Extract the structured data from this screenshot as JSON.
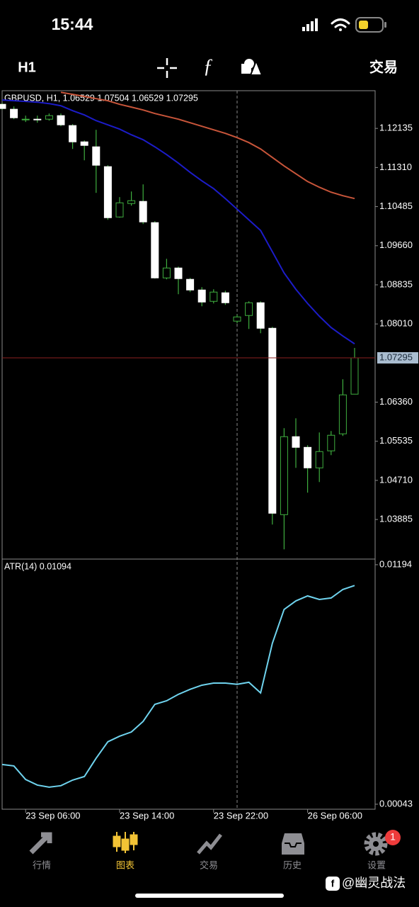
{
  "status_bar": {
    "time": "15:44"
  },
  "toolbar": {
    "timeframe": "H1",
    "trade": "交易"
  },
  "chart_data": [
    {
      "type": "candlestick",
      "title": "GBPUSD, H1, 1.06529 1.07504 1.06529 1.07295",
      "categories": [
        null,
        null,
        "23 Sep 06:00",
        null,
        null,
        null,
        null,
        null,
        null,
        null,
        "23 Sep 14:00",
        null,
        null,
        null,
        null,
        null,
        null,
        null,
        "23 Sep 22:00",
        null,
        null,
        null,
        null,
        null,
        null,
        null,
        "26 Sep 06:00",
        null,
        null,
        null,
        null
      ],
      "open": [
        1.12643,
        1.12539,
        1.12314,
        1.12329,
        1.12329,
        1.12404,
        1.12195,
        1.11851,
        1.11746,
        1.11328,
        1.10266,
        1.1055,
        1.10595,
        1.10147,
        1.08981,
        1.0919,
        1.08951,
        1.08726,
        1.08487,
        1.08667,
        1.08069,
        1.08188,
        1.08457,
        1.07919,
        1.03987,
        1.05632,
        1.05407,
        1.04974,
        1.05333,
        1.05692,
        1.06529
      ],
      "high": [
        1.12673,
        1.12598,
        1.12404,
        1.12404,
        1.12449,
        1.12449,
        1.12225,
        1.11881,
        1.12105,
        1.11358,
        1.10685,
        1.10804,
        1.10954,
        1.10177,
        1.09384,
        1.0922,
        1.08981,
        1.08786,
        1.08741,
        1.08711,
        1.08203,
        1.08487,
        1.08487,
        1.07949,
        1.05811,
        1.0602,
        1.05452,
        1.05721,
        1.05751,
        1.06843,
        1.07504
      ],
      "low": [
        1.12524,
        1.12329,
        1.1227,
        1.12255,
        1.12299,
        1.1218,
        1.11701,
        1.11462,
        1.10775,
        1.10206,
        1.10251,
        1.10505,
        1.10117,
        1.08966,
        1.08951,
        1.08637,
        1.08682,
        1.08383,
        1.08442,
        1.08412,
        1.08024,
        1.07904,
        1.07814,
        1.03778,
        1.03255,
        1.04974,
        1.04451,
        1.04675,
        1.05243,
        1.05647,
        1.06529
      ],
      "close": [
        1.12554,
        1.12359,
        1.12329,
        1.12314,
        1.12404,
        1.1221,
        1.11851,
        1.11776,
        1.11358,
        1.10251,
        1.10565,
        1.1061,
        1.10162,
        1.08981,
        1.0919,
        1.08966,
        1.08726,
        1.08472,
        1.08682,
        1.08457,
        1.08158,
        1.08457,
        1.07919,
        1.04017,
        1.05632,
        1.05407,
        1.04974,
        1.05318,
        1.05662,
        1.06514,
        1.07295
      ],
      "up_color": "#000000",
      "down_color": "#ffffff",
      "wick_color": "#3fae3f",
      "overlays": [
        {
          "color": "#1c1cc8",
          "values": [
            1.12733,
            1.12718,
            1.12703,
            1.12688,
            1.12658,
            1.12613,
            1.12509,
            1.12419,
            1.12299,
            1.1221,
            1.1212,
            1.12,
            1.11896,
            1.11746,
            1.11582,
            1.11402,
            1.11208,
            1.11029,
            1.10864,
            1.10655,
            1.10431,
            1.10206,
            1.09982,
            1.09534,
            1.09085,
            1.08741,
            1.08442,
            1.08173,
            1.07934,
            1.07755,
            1.0759
          ]
        },
        {
          "color": "#c8553a",
          "values": [
            null,
            null,
            null,
            null,
            null,
            1.12897,
            1.12853,
            1.12808,
            1.12763,
            1.12718,
            1.12643,
            1.12584,
            1.12524,
            1.12449,
            1.12389,
            1.12329,
            1.12255,
            1.1218,
            1.12105,
            1.1203,
            1.11941,
            1.11836,
            1.11701,
            1.11522,
            1.11343,
            1.11178,
            1.11014,
            1.10894,
            1.10789,
            1.10715,
            1.10655
          ]
        }
      ],
      "last_price": 1.07295,
      "last_price_color": "#8b1f1f",
      "ylim": [
        1.0305,
        1.1293
      ],
      "yticks": [
        1.12135,
        {
          "value": 1.1131,
          "label": "1.11310"
        },
        1.10485,
        {
          "value": 1.0966,
          "label": "1.09660"
        },
        1.08835,
        {
          "value": 1.0801,
          "label": "1.08010"
        },
        {
          "value": 1.0636,
          "label": "1.06360"
        },
        1.05535,
        {
          "value": 1.0471,
          "label": "1.04710"
        },
        1.03885
      ]
    },
    {
      "type": "line",
      "title": "ATR(14) 0.01094",
      "color": "#6fd3ee",
      "values": [
        0.00234,
        0.00227,
        0.00162,
        0.00135,
        0.00125,
        0.00132,
        0.00159,
        0.00176,
        0.00264,
        0.00343,
        0.0037,
        0.0039,
        0.00441,
        0.00523,
        0.0054,
        0.00571,
        0.00595,
        0.00615,
        0.00625,
        0.00625,
        0.00619,
        0.00629,
        0.00578,
        0.00816,
        0.00979,
        0.0102,
        0.01044,
        0.01027,
        0.01034,
        0.01075,
        0.01094
      ],
      "ylim": [
        0.00019,
        0.01221
      ],
      "yticks": [
        0.01194,
        {
          "value": 0.00043,
          "label": "0.00043"
        }
      ]
    }
  ],
  "tab_bar": {
    "tabs": [
      "行情",
      "图表",
      "交易",
      "历史",
      "设置"
    ],
    "badge": "1"
  },
  "watermark": "@幽灵战法"
}
